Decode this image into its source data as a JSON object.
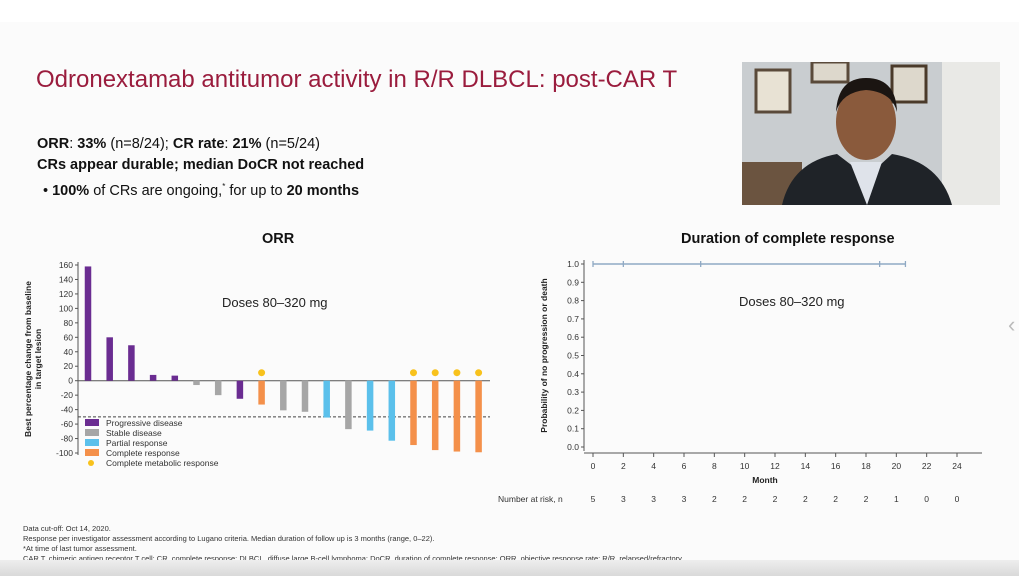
{
  "slide": {
    "title": "Odronextamab antitumor activity in R/R DLBCL: post-CAR T",
    "summary": {
      "orr_label": "ORR",
      "orr_value": "33%",
      "orr_n": "(n=8/24);",
      "cr_label": "CR rate",
      "cr_value": "21%",
      "cr_n": "(n=5/24)",
      "line2": "CRs appear durable; median DoCR not reached",
      "bullet_value": "100%",
      "bullet_text": " of CRs are ongoing,",
      "bullet_mark": "*",
      "bullet_text2": " for up to ",
      "bullet_value2": "20 months"
    },
    "footnotes": [
      "Data cut-off: Oct 14, 2020.",
      "Response per investigator assessment according to Lugano criteria. Median duration of follow up is 3 months (range, 0–22).",
      "*At time of last tumor assessment.",
      "CAR T, chimeric antigen receptor T cell; CR, complete response; DLBCL, diffuse large B-cell lymphoma; DoCR, duration of complete response; ORR, objective response rate; R/R, relapsed/refractory."
    ]
  },
  "colors": {
    "PD": "#6a2c91",
    "SD": "#a6a6a6",
    "PR": "#5bc0eb",
    "CR": "#f4904a",
    "CMR": "#f8c21c",
    "title": "#9a1c3d",
    "km": "#8fa9c4"
  },
  "chart_data": [
    {
      "type": "bar",
      "title": "ORR",
      "annotation": "Doses 80–320 mg",
      "ylabel": "Best percentage change from baseline in target lesion",
      "ylim": [
        -100,
        160
      ],
      "yticks": [
        160,
        140,
        120,
        100,
        80,
        60,
        40,
        20,
        0,
        -20,
        -40,
        -60,
        -80,
        -100
      ],
      "reference_line": -50,
      "values": [
        158,
        60,
        49,
        8,
        7,
        -6,
        -20,
        -25,
        -33,
        -41,
        -43,
        -51,
        -67,
        -69,
        -83,
        -89,
        -96,
        -98,
        -99
      ],
      "response": [
        "PD",
        "PD",
        "PD",
        "PD",
        "PD",
        "SD",
        "SD",
        "PD",
        "CR",
        "SD",
        "SD",
        "PR",
        "SD",
        "PR",
        "PR",
        "CR",
        "CR",
        "CR",
        "CR"
      ],
      "complete_metabolic_response": [
        false,
        false,
        false,
        false,
        false,
        false,
        false,
        false,
        true,
        false,
        false,
        false,
        false,
        false,
        false,
        true,
        true,
        true,
        true
      ],
      "legend": [
        {
          "key": "PD",
          "label": "Progressive disease"
        },
        {
          "key": "SD",
          "label": "Stable disease"
        },
        {
          "key": "PR",
          "label": "Partial response"
        },
        {
          "key": "CR",
          "label": "Complete response"
        },
        {
          "key": "CMR",
          "label": "Complete metabolic response"
        }
      ],
      "legend_position": "bottom-left"
    },
    {
      "type": "line",
      "title": "Duration of complete response",
      "annotation": "Doses 80–320 mg",
      "xlabel": "Month",
      "ylabel": "Probability of no progression or death",
      "xlim": [
        0,
        24
      ],
      "ylim": [
        0,
        1
      ],
      "xticks": [
        0,
        2,
        4,
        6,
        8,
        10,
        12,
        14,
        16,
        18,
        20,
        22,
        24
      ],
      "yticks": [
        "0.0",
        "0.1",
        "0.2",
        "0.3",
        "0.4",
        "0.5",
        "0.6",
        "0.7",
        "0.8",
        "0.9",
        "1.0"
      ],
      "series": [
        {
          "name": "KM",
          "x": [
            0,
            20.6
          ],
          "y": [
            1.0,
            1.0
          ]
        }
      ],
      "censor_x": [
        0,
        2,
        7.1,
        18.9,
        20.6
      ],
      "at_risk_label": "Number at risk, n",
      "at_risk": [
        5,
        3,
        3,
        3,
        2,
        2,
        2,
        2,
        2,
        2,
        1,
        0,
        0
      ]
    }
  ]
}
